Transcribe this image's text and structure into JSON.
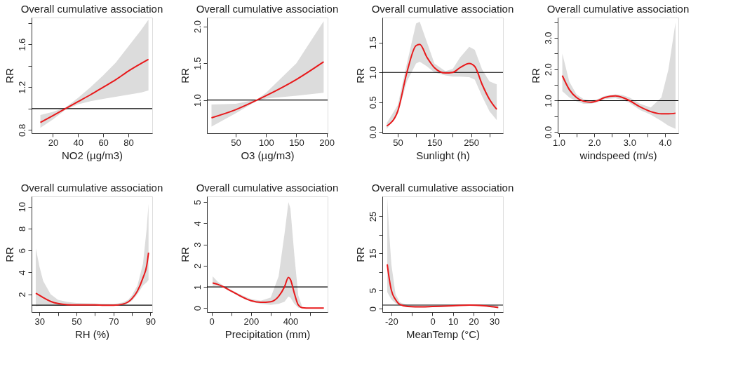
{
  "chart_data": [
    {
      "type": "line",
      "title": "Overall cumulative association",
      "xlabel": "NO2 (µg/m3)",
      "ylabel": "RR",
      "x": [
        10,
        20,
        30,
        40,
        50,
        60,
        70,
        80,
        90,
        96
      ],
      "series": [
        {
          "color": "#e8191b",
          "values": [
            0.87,
            0.935,
            1.0,
            1.065,
            1.13,
            1.2,
            1.27,
            1.35,
            1.42,
            1.46
          ],
          "lower": [
            0.82,
            0.9,
            0.99,
            1.04,
            1.07,
            1.09,
            1.11,
            1.13,
            1.15,
            1.17
          ],
          "upper": [
            0.94,
            0.97,
            1.01,
            1.1,
            1.2,
            1.31,
            1.43,
            1.58,
            1.73,
            1.83
          ]
        }
      ],
      "xlim": [
        3,
        99
      ],
      "ylim": [
        0.77,
        1.85
      ],
      "xticks": [
        20,
        40,
        60,
        80
      ],
      "yticks": [
        0.8,
        {
          "value": 1.0,
          "label": null
        },
        1.2,
        {
          "value": 1.4,
          "label": null
        },
        1.6,
        {
          "value": 1.8,
          "label": null
        }
      ],
      "ref_lines": [
        {
          "axis": "y",
          "value": 1,
          "color": "#000000"
        }
      ]
    },
    {
      "type": "line",
      "title": "Overall cumulative association",
      "xlabel": "O3 (µg/m3)",
      "ylabel": "RR",
      "x": [
        10,
        50,
        85,
        100,
        150,
        195
      ],
      "series": [
        {
          "color": "#e8191b",
          "values": [
            0.76,
            0.87,
            1.0,
            1.06,
            1.28,
            1.52
          ],
          "lower": [
            0.64,
            0.82,
            0.99,
            1.02,
            1.06,
            1.1
          ],
          "upper": [
            0.94,
            0.95,
            1.01,
            1.1,
            1.5,
            2.07
          ]
        }
      ],
      "xlim": [
        2.5,
        201.5
      ],
      "ylim": [
        0.55,
        2.12
      ],
      "xticks": [
        50,
        100,
        150,
        200
      ],
      "yticks": [
        {
          "value": 1,
          "label": "1.0"
        },
        1.5,
        {
          "value": 2,
          "label": "2.0"
        }
      ],
      "ref_lines": [
        {
          "axis": "y",
          "value": 1,
          "color": "#000000"
        }
      ]
    },
    {
      "type": "line",
      "title": "Overall cumulative association",
      "xlabel": "Sunlight (h)",
      "ylabel": "RR",
      "x": [
        20,
        50,
        75,
        100,
        110,
        130,
        150,
        180,
        200,
        220,
        245,
        260,
        280,
        300,
        320
      ],
      "series": [
        {
          "color": "#e8191b",
          "values": [
            0.1,
            0.35,
            1.0,
            1.45,
            1.47,
            1.25,
            1.08,
            0.99,
            1.0,
            1.08,
            1.15,
            1.1,
            0.8,
            0.55,
            0.38
          ],
          "lower": [
            0.05,
            0.3,
            0.85,
            1.15,
            1.18,
            1.1,
            1.0,
            0.95,
            0.93,
            0.93,
            0.92,
            0.88,
            0.6,
            0.35,
            0.2
          ],
          "upper": [
            0.15,
            0.45,
            1.15,
            1.82,
            1.85,
            1.5,
            1.15,
            1.02,
            1.06,
            1.25,
            1.43,
            1.38,
            1.05,
            0.85,
            0.8
          ]
        }
      ],
      "xlim": [
        8,
        337
      ],
      "ylim": [
        -0.02,
        1.92
      ],
      "xticks": [
        50,
        {
          "value": 100,
          "label": null
        },
        150,
        {
          "value": 200,
          "label": null
        },
        250,
        {
          "value": 300,
          "label": null
        }
      ],
      "yticks": [
        {
          "value": 0,
          "label": "0.0"
        },
        0.5,
        {
          "value": 1,
          "label": "1.0"
        },
        1.5
      ],
      "ref_lines": [
        {
          "axis": "y",
          "value": 1,
          "color": "#000000"
        }
      ]
    },
    {
      "type": "line",
      "title": "Overall cumulative association",
      "xlabel": "windspeed (m/s)",
      "ylabel": "RR",
      "x": [
        1.1,
        1.3,
        1.5,
        1.7,
        1.9,
        2.1,
        2.3,
        2.6,
        2.8,
        3.0,
        3.3,
        3.6,
        3.9,
        4.1,
        4.3
      ],
      "series": [
        {
          "color": "#e8191b",
          "values": [
            1.8,
            1.35,
            1.1,
            0.98,
            0.95,
            1.0,
            1.1,
            1.15,
            1.1,
            1.0,
            0.8,
            0.65,
            0.58,
            0.58,
            0.6
          ],
          "lower": [
            1.3,
            1.1,
            0.98,
            0.9,
            0.9,
            0.95,
            1.05,
            1.08,
            1.02,
            0.93,
            0.7,
            0.55,
            0.35,
            0.2,
            0.1
          ],
          "upper": [
            2.5,
            1.6,
            1.2,
            1.05,
            1.0,
            1.05,
            1.15,
            1.2,
            1.18,
            1.1,
            0.9,
            0.78,
            1.1,
            2.0,
            3.5
          ]
        }
      ],
      "xlim": [
        0.97,
        4.38
      ],
      "ylim": [
        -0.04,
        3.65
      ],
      "xticks": [
        {
          "value": 1,
          "label": "1.0"
        },
        {
          "value": 1.5,
          "label": null
        },
        {
          "value": 2,
          "label": "2.0"
        },
        {
          "value": 2.5,
          "label": null
        },
        {
          "value": 3,
          "label": "3.0"
        },
        {
          "value": 3.5,
          "label": null
        },
        {
          "value": 4,
          "label": "4.0"
        }
      ],
      "yticks": [
        {
          "value": 0,
          "label": "0.0"
        },
        {
          "value": 0.5,
          "label": null
        },
        {
          "value": 1,
          "label": "1.0"
        },
        {
          "value": 1.5,
          "label": null
        },
        {
          "value": 2,
          "label": "2.0"
        },
        {
          "value": 2.5,
          "label": null
        },
        {
          "value": 3,
          "label": "3.0"
        },
        {
          "value": 3.5,
          "label": null
        }
      ],
      "ref_lines": [
        {
          "axis": "y",
          "value": 1,
          "color": "#000000"
        }
      ]
    },
    {
      "type": "line",
      "title": "Overall cumulative association",
      "xlabel": "RH (%)",
      "ylabel": "RR",
      "x": [
        28,
        30,
        32,
        36,
        40,
        45,
        50,
        60,
        65,
        70,
        75,
        78,
        80,
        83,
        86,
        88,
        89
      ],
      "series": [
        {
          "color": "#e8191b",
          "values": [
            2.1,
            1.9,
            1.7,
            1.35,
            1.15,
            1.05,
            1.03,
            1.03,
            1.0,
            1.0,
            1.1,
            1.3,
            1.6,
            2.3,
            3.5,
            4.6,
            5.8
          ],
          "lower": [
            0.9,
            0.95,
            1.0,
            1.0,
            0.95,
            0.97,
            0.98,
            0.98,
            0.96,
            0.95,
            1.0,
            1.2,
            1.4,
            2.0,
            2.8,
            3.1,
            3.3
          ],
          "upper": [
            6.2,
            4.5,
            3.2,
            2.0,
            1.5,
            1.3,
            1.2,
            1.15,
            1.12,
            1.1,
            1.25,
            1.5,
            1.9,
            2.8,
            4.8,
            8.0,
            10.3
          ]
        }
      ],
      "xlim": [
        25.7,
        91
      ],
      "ylim": [
        0.37,
        10.95
      ],
      "xticks": [
        30,
        {
          "value": 40,
          "label": null
        },
        50,
        {
          "value": 60,
          "label": null
        },
        70,
        {
          "value": 80,
          "label": null
        },
        90
      ],
      "yticks": [
        2,
        4,
        6,
        8,
        10
      ],
      "ref_lines": [
        {
          "axis": "y",
          "value": 1,
          "color": "#000000"
        }
      ]
    },
    {
      "type": "line",
      "title": "Overall cumulative association",
      "xlabel": "Precipitation (mm)",
      "ylabel": "RR",
      "x": [
        5,
        30,
        60,
        100,
        150,
        200,
        250,
        300,
        340,
        370,
        390,
        400,
        420,
        440,
        460,
        500,
        570
      ],
      "series": [
        {
          "color": "#e8191b",
          "values": [
            1.18,
            1.12,
            1.0,
            0.8,
            0.55,
            0.35,
            0.27,
            0.3,
            0.55,
            1.0,
            1.45,
            1.35,
            0.7,
            0.15,
            0.02,
            0,
            0
          ],
          "lower": [
            1.05,
            1.05,
            0.95,
            0.75,
            0.5,
            0.3,
            0.2,
            0.15,
            0.2,
            0.3,
            0.55,
            0.5,
            0.2,
            0.02,
            0,
            0,
            0
          ],
          "upper": [
            1.5,
            1.25,
            1.05,
            0.85,
            0.62,
            0.42,
            0.35,
            0.5,
            1.5,
            3.5,
            5.0,
            4.7,
            2.5,
            0.6,
            0.05,
            0,
            0
          ]
        }
      ],
      "xlim": [
        -24,
        589
      ],
      "ylim": [
        -0.19,
        5.27
      ],
      "xticks": [
        0,
        {
          "value": 100,
          "label": null
        },
        200,
        {
          "value": 300,
          "label": null
        },
        400,
        {
          "value": 500,
          "label": null
        }
      ],
      "yticks": [
        0,
        1,
        2,
        3,
        4,
        5
      ],
      "ref_lines": [
        {
          "axis": "y",
          "value": 1,
          "color": "#000000"
        }
      ]
    },
    {
      "type": "line",
      "title": "Overall cumulative association",
      "xlabel": "MeanTemp (°C)",
      "ylabel": "RR",
      "x": [
        -22,
        -21,
        -20,
        -18,
        -16,
        -12,
        -5,
        0,
        10,
        18,
        25,
        32
      ],
      "series": [
        {
          "color": "#e8191b",
          "values": [
            12,
            8,
            5,
            2.5,
            1.2,
            0.6,
            0.5,
            0.6,
            0.8,
            1.0,
            0.8,
            0.35
          ],
          "lower": [
            4.5,
            3.5,
            2.5,
            1.5,
            0.9,
            0.45,
            0.35,
            0.45,
            0.65,
            0.9,
            0.6,
            0.2
          ],
          "upper": [
            30,
            20,
            12,
            4,
            1.8,
            0.9,
            0.7,
            0.8,
            0.95,
            1.1,
            1.0,
            0.9
          ]
        }
      ],
      "xlim": [
        -24.4,
        34.3
      ],
      "ylim": [
        -0.9,
        30.4
      ],
      "xticks": [
        -20,
        {
          "value": -10,
          "label": null
        },
        0,
        10,
        20,
        30
      ],
      "yticks": [
        0,
        5,
        {
          "value": 10,
          "label": null
        },
        15,
        {
          "value": 20,
          "label": null
        },
        25
      ],
      "ref_lines": [
        {
          "axis": "y",
          "value": 1,
          "color": "#000000"
        }
      ]
    }
  ]
}
